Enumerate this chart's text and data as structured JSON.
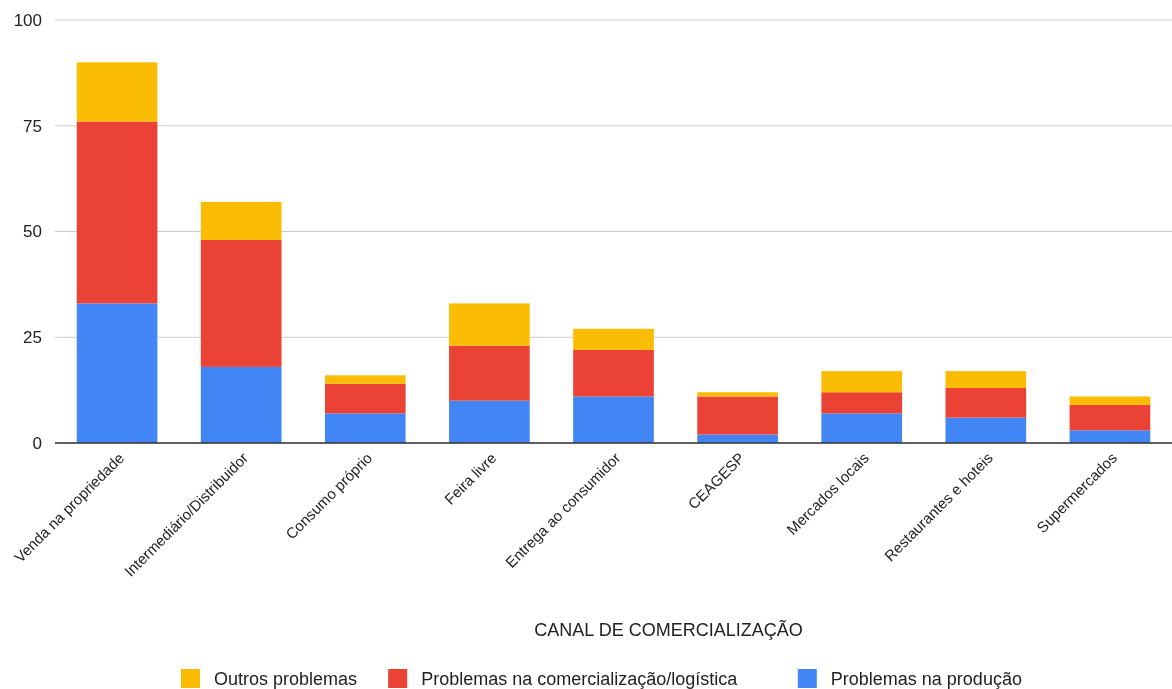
{
  "chart_data": {
    "type": "bar",
    "stacked": true,
    "xlabel": "CANAL DE COMERCIALIZAÇÃO",
    "categories": [
      "Venda na propriedade",
      "Intermediário/Distribuidor",
      "Consumo próprio",
      "Feira livre",
      "Entrega ao consumidor",
      "CEAGESP",
      "Mercados locais",
      "Restaurantes e hoteis",
      "Supermercados"
    ],
    "series": [
      {
        "name": "Problemas na produção",
        "color": "#4285f4",
        "values": [
          33,
          18,
          7,
          10,
          11,
          2,
          7,
          6,
          3
        ]
      },
      {
        "name": "Problemas na comercialização/logística",
        "color": "#ea4335",
        "values": [
          43,
          30,
          7,
          13,
          11,
          9,
          5,
          7,
          6
        ]
      },
      {
        "name": "Outros problemas",
        "color": "#fbbc04",
        "values": [
          14,
          9,
          2,
          10,
          5,
          1,
          5,
          4,
          2
        ]
      }
    ],
    "ylim": [
      0,
      100
    ],
    "yticks": [
      0,
      25,
      50,
      75,
      100
    ],
    "grid": "y",
    "legend": "bottom"
  }
}
